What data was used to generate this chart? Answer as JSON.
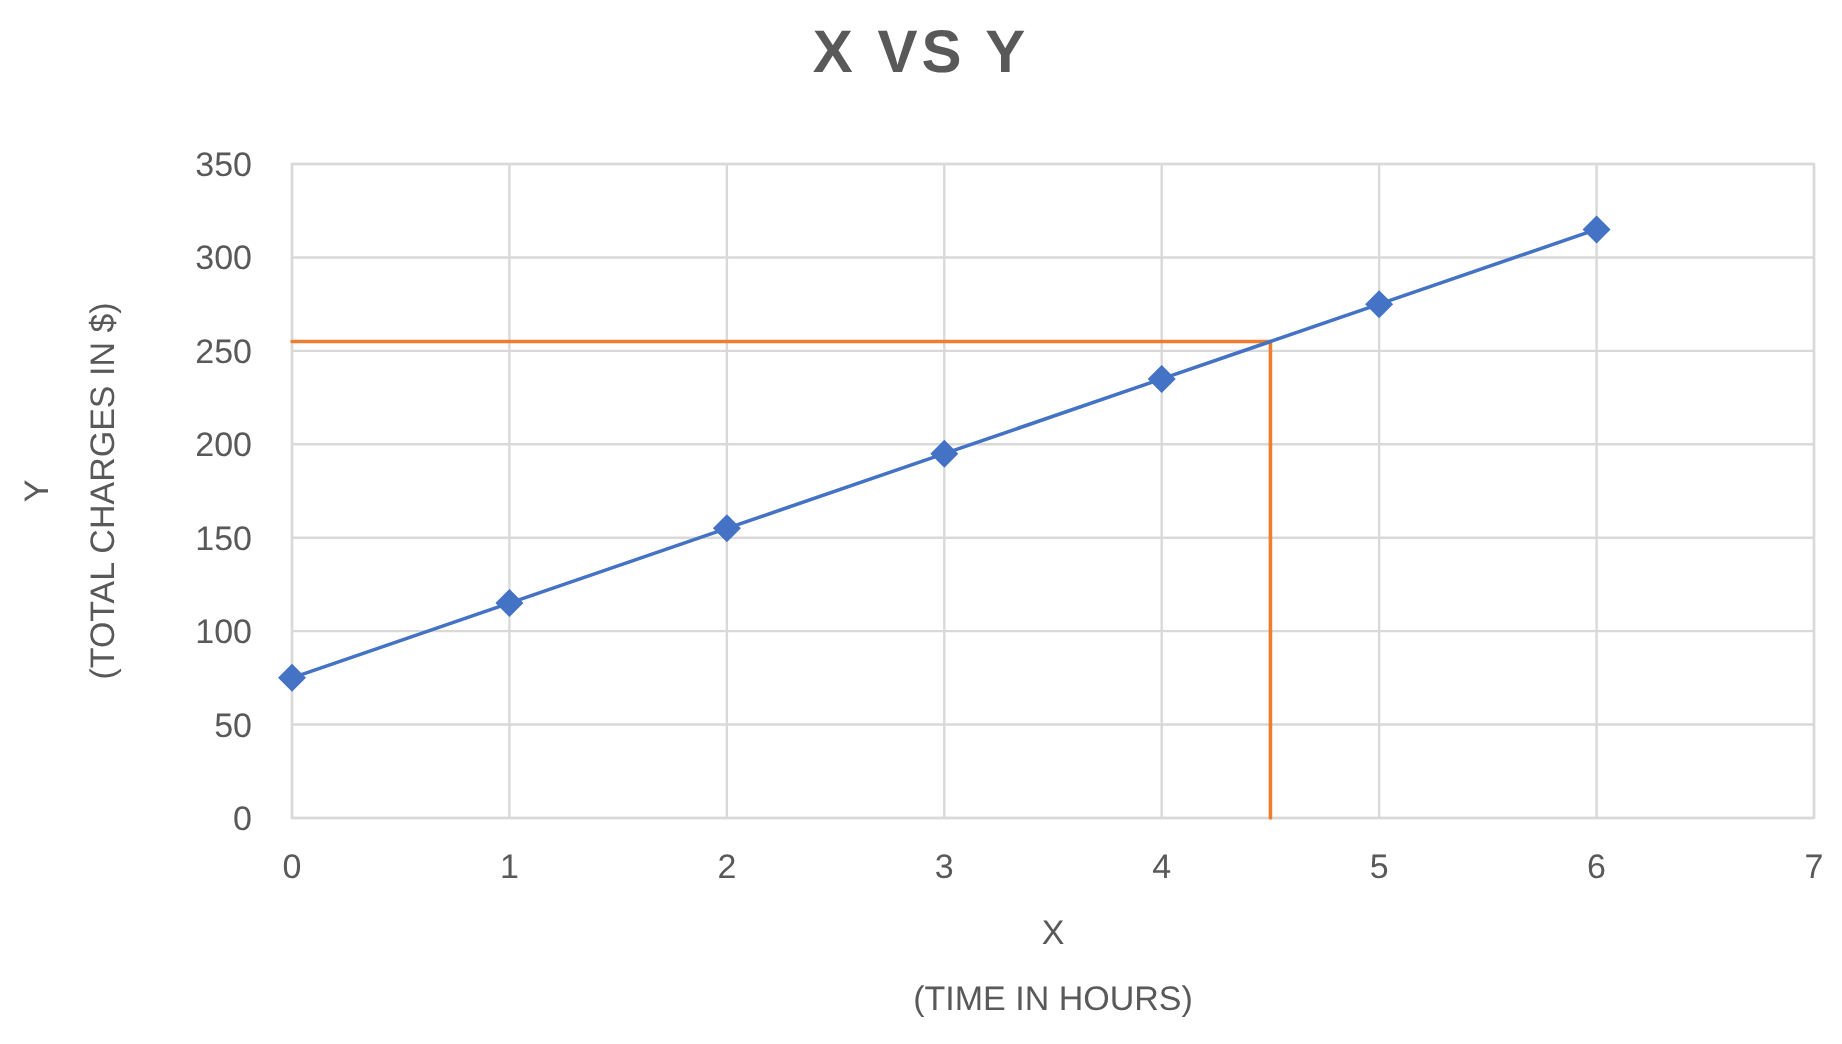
{
  "chart_data": {
    "type": "line",
    "title": "X VS Y",
    "xlabel": "X\n(TIME IN HOURS)",
    "ylabel": "Y\n(TOTAL CHARGES IN $)",
    "xlim": [
      0,
      7
    ],
    "xticks": [
      0,
      1,
      2,
      3,
      4,
      5,
      6,
      7
    ],
    "ylim": [
      0,
      350
    ],
    "yticks": [
      0,
      50,
      100,
      150,
      200,
      250,
      300,
      350
    ],
    "grid": true,
    "series": [
      {
        "color": "#4472c4",
        "x": [
          0,
          1,
          2,
          3,
          4,
          5,
          6
        ],
        "values": [
          75,
          115,
          155,
          195,
          235,
          275,
          315
        ],
        "marker": "diamond"
      },
      {
        "color": "#ed7d31",
        "x": [
          0,
          4.5,
          4.5
        ],
        "values": [
          255,
          255,
          0
        ],
        "marker": "none"
      }
    ]
  }
}
